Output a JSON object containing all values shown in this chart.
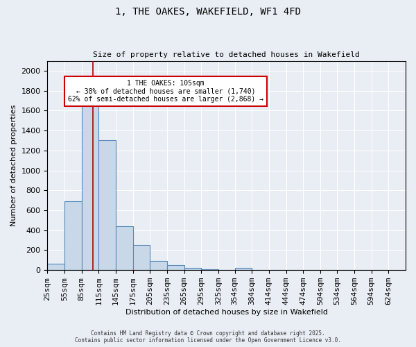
{
  "title": "1, THE OAKES, WAKEFIELD, WF1 4FD",
  "subtitle": "Size of property relative to detached houses in Wakefield",
  "xlabel": "Distribution of detached houses by size in Wakefield",
  "ylabel": "Number of detached properties",
  "bar_color": "#c8d8e8",
  "bar_edge_color": "#5588bb",
  "background_color": "#e8eef4",
  "bins": [
    "25sqm",
    "55sqm",
    "85sqm",
    "115sqm",
    "145sqm",
    "175sqm",
    "205sqm",
    "235sqm",
    "265sqm",
    "295sqm",
    "325sqm",
    "354sqm",
    "384sqm",
    "414sqm",
    "444sqm",
    "474sqm",
    "504sqm",
    "534sqm",
    "564sqm",
    "594sqm",
    "624sqm"
  ],
  "left_edges": [
    25,
    55,
    85,
    115,
    145,
    175,
    205,
    235,
    265,
    295,
    325,
    354,
    384,
    414,
    444,
    474,
    504,
    534,
    564,
    594
  ],
  "bar_heights": [
    65,
    690,
    1670,
    1300,
    440,
    255,
    90,
    50,
    25,
    10,
    0,
    20,
    0,
    0,
    0,
    0,
    0,
    0,
    0,
    0
  ],
  "bin_width": 30,
  "ylim": [
    0,
    2100
  ],
  "yticks": [
    0,
    200,
    400,
    600,
    800,
    1000,
    1200,
    1400,
    1600,
    1800,
    2000
  ],
  "xlim_min": 25,
  "xlim_max": 654,
  "property_size": 105,
  "property_name": "1 THE OAKES: 105sqm",
  "pct_smaller": 38,
  "num_smaller": 1740,
  "pct_semi_larger": 62,
  "num_semi_larger": 2868,
  "vline_color": "#aa0000",
  "annotation_box_color": "#cc0000",
  "footer_line1": "Contains HM Land Registry data © Crown copyright and database right 2025.",
  "footer_line2": "Contains public sector information licensed under the Open Government Licence v3.0."
}
